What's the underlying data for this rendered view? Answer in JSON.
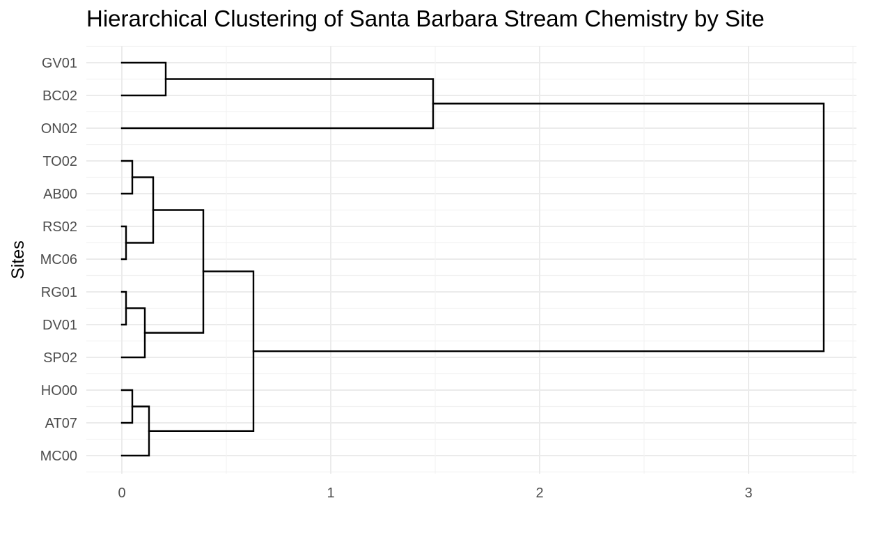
{
  "chart_data": {
    "type": "dendrogram",
    "orientation": "horizontal",
    "title": "Hierarchical Clustering of Santa Barbara Stream Chemistry by Site",
    "ylabel": "Sites",
    "xlabel": "",
    "xlim": [
      -0.16,
      3.5
    ],
    "x_ticks": [
      0,
      1,
      2,
      3
    ],
    "x_tick_labels": [
      "0",
      "1",
      "2",
      "3"
    ],
    "grid": true,
    "leaves": [
      "GV01",
      "BC02",
      "ON02",
      "TO02",
      "AB00",
      "RS02",
      "MC06",
      "RG01",
      "DV01",
      "SP02",
      "HO00",
      "AT07",
      "MC00"
    ],
    "merges": [
      {
        "id": "m1",
        "a": "RS02",
        "b": "MC06",
        "height": 0.02
      },
      {
        "id": "m2",
        "a": "RG01",
        "b": "DV01",
        "height": 0.02
      },
      {
        "id": "m3",
        "a": "TO02",
        "b": "AB00",
        "height": 0.05
      },
      {
        "id": "m4",
        "a": "HO00",
        "b": "AT07",
        "height": 0.05
      },
      {
        "id": "m5",
        "a": "m2",
        "b": "SP02",
        "height": 0.11
      },
      {
        "id": "m6",
        "a": "m4",
        "b": "MC00",
        "height": 0.13
      },
      {
        "id": "m7",
        "a": "m3",
        "b": "m1",
        "height": 0.15
      },
      {
        "id": "m8",
        "a": "GV01",
        "b": "BC02",
        "height": 0.21
      },
      {
        "id": "m9",
        "a": "m7",
        "b": "m5",
        "height": 0.39
      },
      {
        "id": "m10",
        "a": "m9",
        "b": "m6",
        "height": 0.63
      },
      {
        "id": "m11",
        "a": "m8",
        "b": "ON02",
        "height": 1.49
      },
      {
        "id": "m12",
        "a": "m11",
        "b": "m10",
        "height": 3.36
      }
    ]
  }
}
